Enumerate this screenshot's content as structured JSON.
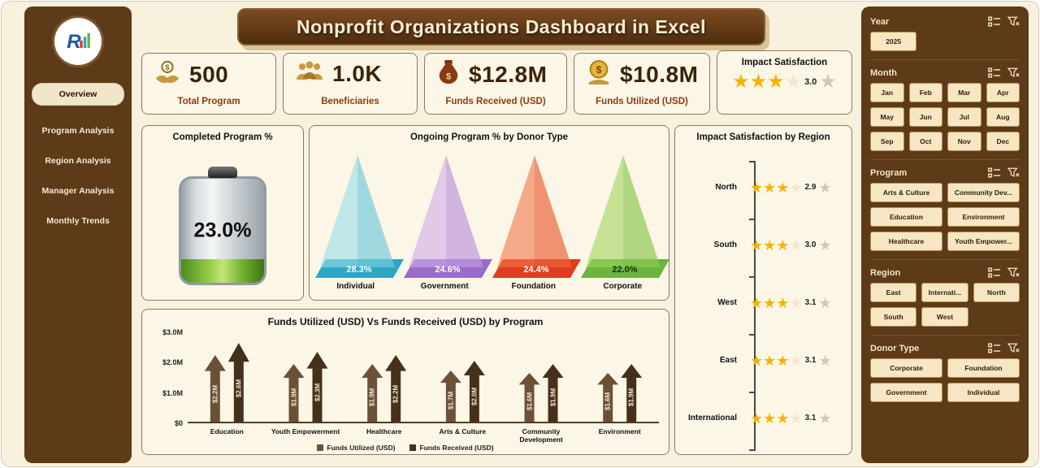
{
  "header": {
    "title": "Nonprofit Organizations Dashboard in Excel"
  },
  "sidebar": {
    "logo_letter": "R",
    "items": [
      {
        "label": "Overview",
        "active": true
      },
      {
        "label": "Program Analysis",
        "active": false
      },
      {
        "label": "Region Analysis",
        "active": false
      },
      {
        "label": "Manager Analysis",
        "active": false
      },
      {
        "label": "Monthly Trends",
        "active": false
      }
    ]
  },
  "kpis": [
    {
      "icon": "hands-coins-icon",
      "value": "500",
      "label": "Total Program"
    },
    {
      "icon": "beneficiaries-icon",
      "value": "1.0K",
      "label": "Beneficiaries"
    },
    {
      "icon": "money-bag-icon",
      "value": "$12.8M",
      "label": "Funds Received (USD)"
    },
    {
      "icon": "dollar-coin-icon",
      "value": "$10.8M",
      "label": "Funds Utilized (USD)"
    }
  ],
  "impact_card": {
    "title": "Impact Satisfaction",
    "stars_filled": 3,
    "stars_total": 5,
    "value": "3.0"
  },
  "completed_gauge": {
    "title": "Completed Program %",
    "percent": 23.0,
    "label": "23.0%"
  },
  "chart_data": [
    {
      "id": "donor",
      "type": "pyramid",
      "title": "Ongoing Program % by Donor Type",
      "categories": [
        "Individual",
        "Government",
        "Foundation",
        "Corporate"
      ],
      "values": [
        28.3,
        24.6,
        24.4,
        22.0
      ],
      "labels": [
        "28.3%",
        "24.6%",
        "24.4%",
        "22.0%"
      ],
      "colors": [
        "#9adce8",
        "#cfaee8",
        "#f0764a",
        "#9ed45e"
      ],
      "base_colors": [
        "#2ca8c4",
        "#9a6cc9",
        "#e03c20",
        "#6db33f"
      ],
      "label_colors": [
        "#ffffff",
        "#ffffff",
        "#ffffff",
        "#16300a"
      ]
    },
    {
      "id": "region",
      "type": "rating",
      "title": "Impact Satisfaction by Region",
      "categories": [
        "North",
        "South",
        "West",
        "East",
        "International"
      ],
      "values": [
        2.9,
        3.0,
        3.1,
        3.1,
        3.1
      ],
      "labels": [
        "2.9",
        "3.0",
        "3.1",
        "3.1",
        "3.1"
      ],
      "stars_filled": [
        3,
        3,
        3,
        3,
        3
      ],
      "stars_total": 5
    },
    {
      "id": "funds",
      "type": "bar",
      "title": "Funds Utilized (USD) Vs Funds Received (USD) by Program",
      "categories": [
        "Education",
        "Youth Empowerment",
        "Healthcare",
        "Arts & Culture",
        "Community Development",
        "Environment"
      ],
      "series": [
        {
          "name": "Funds Utilized (USD)",
          "color": "#6b5138",
          "values": [
            2.2,
            1.9,
            1.9,
            1.7,
            1.6,
            1.6
          ],
          "labels": [
            "$2.2M",
            "$1.9M",
            "$1.9M",
            "$1.7M",
            "$1.6M",
            "$1.6M"
          ]
        },
        {
          "name": "Funds Received (USD)",
          "color": "#45301c",
          "values": [
            2.6,
            2.3,
            2.2,
            2.0,
            1.9,
            1.9
          ],
          "labels": [
            "$2.6M",
            "$2.3M",
            "$2.2M",
            "$2.0M",
            "$1.9M",
            "$1.9M"
          ]
        }
      ],
      "y_ticks": [
        "$3.0M",
        "$2.0M",
        "$1.0M",
        "$0"
      ],
      "ymax": 3.0,
      "unit": "USD millions",
      "legend_position": "bottom"
    }
  ],
  "slicers": [
    {
      "title": "Year",
      "columns": 3,
      "options": [
        "2025"
      ]
    },
    {
      "title": "Month",
      "columns": 4,
      "options": [
        "Jan",
        "Feb",
        "Mar",
        "Apr",
        "May",
        "Jun",
        "Jul",
        "Aug",
        "Sep",
        "Oct",
        "Nov",
        "Dec"
      ]
    },
    {
      "title": "Program",
      "columns": 2,
      "options": [
        "Arts & Culture",
        "Community Dev...",
        "Education",
        "Environment",
        "Healthcare",
        "Youth Empower..."
      ]
    },
    {
      "title": "Region",
      "columns": 3,
      "options": [
        "East",
        "Internati...",
        "North",
        "South",
        "West"
      ]
    },
    {
      "title": "Donor Type",
      "columns": 2,
      "options": [
        "Corporate",
        "Foundation",
        "Government",
        "Individual"
      ]
    }
  ],
  "colors": {
    "background": "#f8f1de",
    "panel_bg": "#fcf6e6",
    "panel_border": "#8a7a64",
    "sidebar_bg": "#5d3a18",
    "banner_bg": "#5a3414",
    "value_text": "#3b2208",
    "label_text": "#8a3c0f",
    "star_gold": "#f5b301",
    "star_gray": "#cfc8b6",
    "gauge_green": "#6fae2c"
  }
}
